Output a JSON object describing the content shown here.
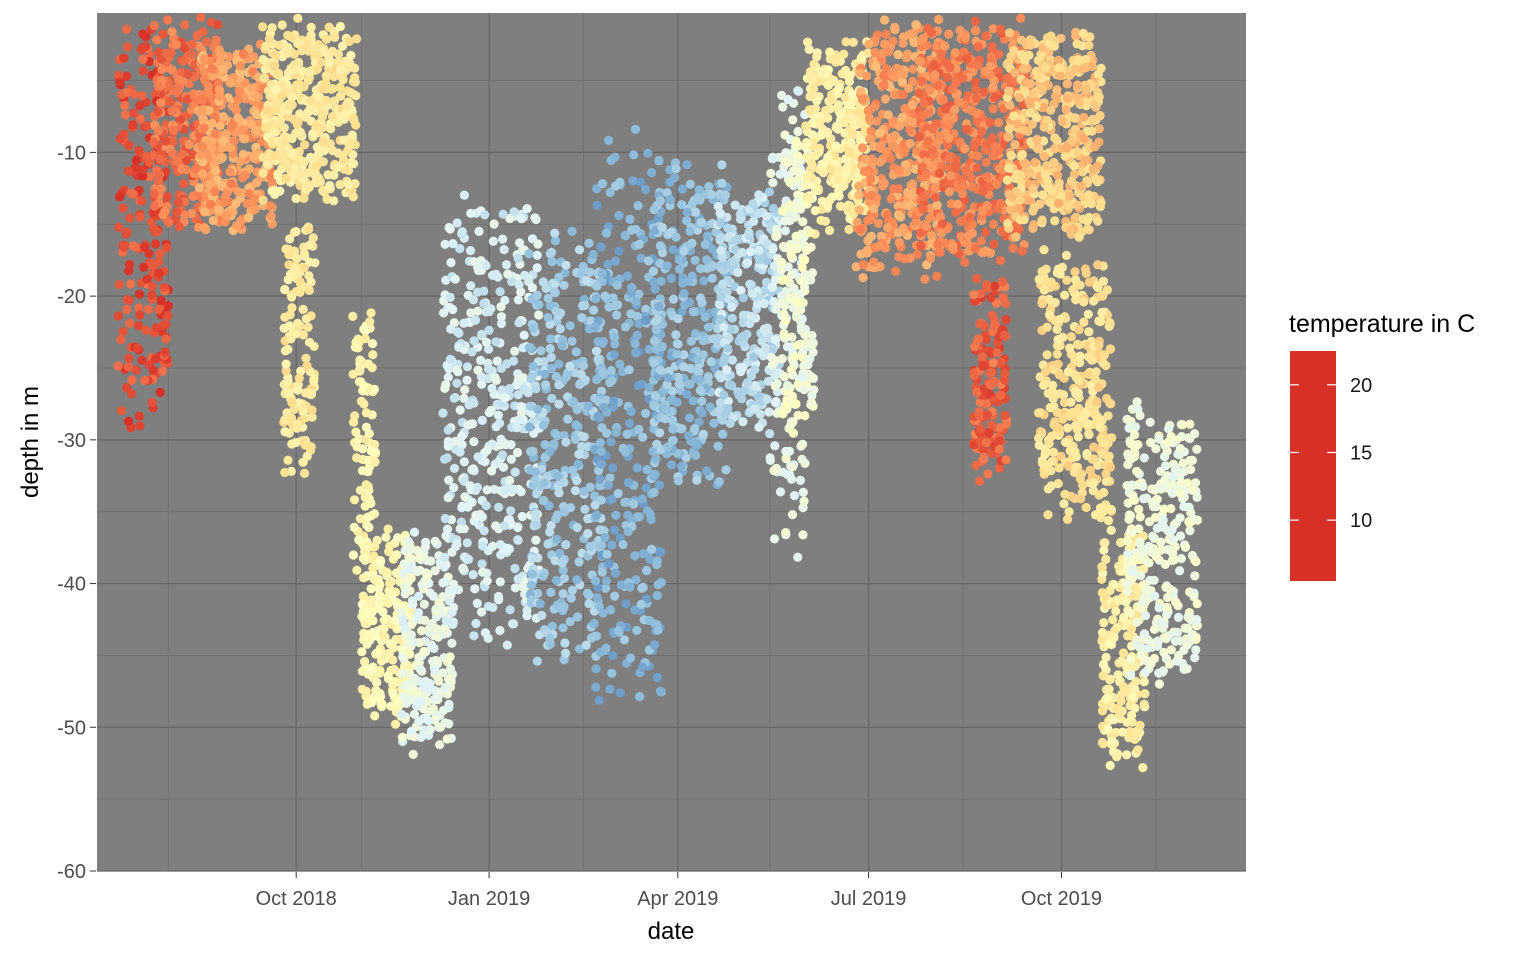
{
  "chart_data": {
    "type": "scatter",
    "title": "",
    "xlabel": "date",
    "ylabel": "depth in m",
    "xlim": [
      "2018-06-28",
      "2019-12-28"
    ],
    "ylim": [
      -60,
      -0.3
    ],
    "x_ticks": [
      {
        "label": "Oct 2018",
        "date": "2018-10-01"
      },
      {
        "label": "Jan 2019",
        "date": "2019-01-01"
      },
      {
        "label": "Apr 2019",
        "date": "2019-04-01"
      },
      {
        "label": "Jul 2019",
        "date": "2019-07-01"
      },
      {
        "label": "Oct 2019",
        "date": "2019-10-01"
      }
    ],
    "x_minor_ticks": [
      "2018-08-01",
      "2018-11-01",
      "2019-02-15",
      "2019-05-15",
      "2019-08-15",
      "2019-11-15"
    ],
    "y_ticks": [
      {
        "label": "-10",
        "value": -10
      },
      {
        "label": "-20",
        "value": -20
      },
      {
        "label": "-30",
        "value": -30
      },
      {
        "label": "-40",
        "value": -40
      },
      {
        "label": "-50",
        "value": -50
      },
      {
        "label": "-60",
        "value": -60
      }
    ],
    "y_minor_ticks": [
      -5,
      -15,
      -25,
      -35,
      -45,
      -55
    ],
    "panel_background": "#7f7f7f",
    "grid": true,
    "legend": {
      "title": "temperature in C",
      "position": "right",
      "range": [
        5.5,
        22.5
      ],
      "breaks": [
        {
          "label": "20",
          "value": 20
        },
        {
          "label": "15",
          "value": 15
        },
        {
          "label": "10",
          "value": 10
        }
      ],
      "palette": [
        "#d73027",
        "#fc8d59",
        "#fee090",
        "#ffffbf",
        "#e0f3f8",
        "#91bfdb",
        "#4575b4"
      ]
    },
    "series": [
      {
        "clusters": [
          {
            "x_start": "2018-07-08",
            "x_end": "2018-08-01",
            "depth_top": -0.5,
            "depth_bottom": -30,
            "temp": 21.5
          },
          {
            "x_start": "2018-07-25",
            "x_end": "2018-08-25",
            "depth_top": -0.5,
            "depth_bottom": -16,
            "temp": 20.5
          },
          {
            "x_start": "2018-08-15",
            "x_end": "2018-09-20",
            "depth_top": -2,
            "depth_bottom": -16,
            "temp": 19
          },
          {
            "x_start": "2018-09-15",
            "x_end": "2018-10-30",
            "depth_top": -0.5,
            "depth_bottom": -14,
            "temp": 16
          },
          {
            "x_start": "2018-09-25",
            "x_end": "2018-10-10",
            "depth_top": -14,
            "depth_bottom": -33,
            "temp": 16
          },
          {
            "x_start": "2018-10-28",
            "x_end": "2018-11-08",
            "depth_top": -20,
            "depth_bottom": -40,
            "temp": 15
          },
          {
            "x_start": "2018-11-01",
            "x_end": "2018-11-25",
            "depth_top": -36,
            "depth_bottom": -50,
            "temp": 14.5
          },
          {
            "x_start": "2018-11-20",
            "x_end": "2018-12-15",
            "depth_top": -36,
            "depth_bottom": -52,
            "temp": 12
          },
          {
            "x_start": "2018-12-10",
            "x_end": "2019-01-25",
            "depth_top": -12,
            "depth_bottom": -45,
            "temp": 11
          },
          {
            "x_start": "2019-01-20",
            "x_end": "2019-02-25",
            "depth_top": -14,
            "depth_bottom": -46,
            "temp": 9
          },
          {
            "x_start": "2019-02-20",
            "x_end": "2019-03-25",
            "depth_top": -8,
            "depth_bottom": -50,
            "temp": 8
          },
          {
            "x_start": "2019-03-20",
            "x_end": "2019-04-25",
            "depth_top": -10,
            "depth_bottom": -34,
            "temp": 8.5
          },
          {
            "x_start": "2019-04-20",
            "x_end": "2019-05-20",
            "depth_top": -12,
            "depth_bottom": -30,
            "temp": 10
          },
          {
            "x_start": "2019-05-15",
            "x_end": "2019-06-01",
            "depth_top": -4,
            "depth_bottom": -40,
            "temp": 12
          },
          {
            "x_start": "2019-05-20",
            "x_end": "2019-06-05",
            "depth_top": -8,
            "depth_bottom": -30,
            "temp": 13
          },
          {
            "x_start": "2019-06-01",
            "x_end": "2019-07-01",
            "depth_top": -2,
            "depth_bottom": -16,
            "temp": 15.5
          },
          {
            "x_start": "2019-06-25",
            "x_end": "2019-08-05",
            "depth_top": -0.5,
            "depth_bottom": -19,
            "temp": 19
          },
          {
            "x_start": "2019-07-25",
            "x_end": "2019-09-15",
            "depth_top": -0.5,
            "depth_bottom": -18,
            "temp": 20
          },
          {
            "x_start": "2019-08-20",
            "x_end": "2019-09-05",
            "depth_top": -18,
            "depth_bottom": -33,
            "temp": 21
          },
          {
            "x_start": "2019-09-05",
            "x_end": "2019-10-20",
            "depth_top": -1,
            "depth_bottom": -16,
            "temp": 17.5
          },
          {
            "x_start": "2019-09-20",
            "x_end": "2019-10-25",
            "depth_top": -16,
            "depth_bottom": -36,
            "temp": 16.5
          },
          {
            "x_start": "2019-10-20",
            "x_end": "2019-11-10",
            "depth_top": -36,
            "depth_bottom": -53,
            "temp": 15.5
          },
          {
            "x_start": "2019-11-01",
            "x_end": "2019-12-05",
            "depth_top": -27,
            "depth_bottom": -48,
            "temp": 12.5
          }
        ]
      }
    ]
  }
}
